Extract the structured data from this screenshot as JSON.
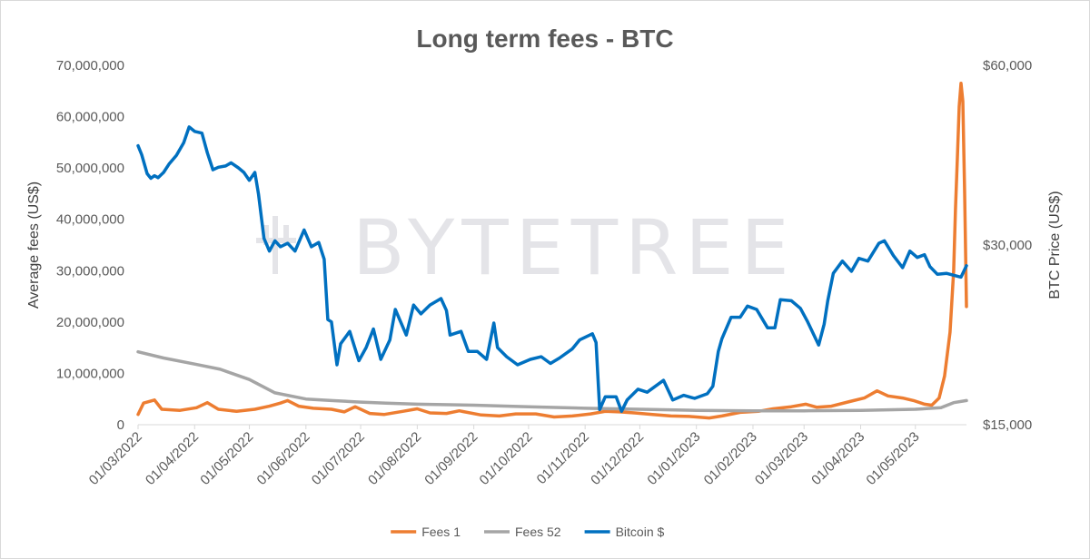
{
  "chart_data": {
    "type": "line",
    "title": "Long term fees - BTC",
    "watermark": "BYTETREE",
    "ylabel": "Average fees (US$)",
    "y2label": "BTC Price (US$)",
    "ylim": [
      0,
      70000000
    ],
    "y2lim": [
      15000,
      60000
    ],
    "yticks": [
      "0",
      "10,000,000",
      "20,000,000",
      "30,000,000",
      "40,000,000",
      "50,000,000",
      "60,000,000",
      "70,000,000"
    ],
    "y2ticks": [
      "$15,000",
      "$30,000",
      "$60,000"
    ],
    "y2tick_values": [
      15000,
      30000,
      60000
    ],
    "xticks": [
      "01/03/2022",
      "01/04/2022",
      "01/05/2022",
      "01/06/2022",
      "01/07/2022",
      "01/08/2022",
      "01/09/2022",
      "01/10/2022",
      "01/11/2022",
      "01/12/2022",
      "01/01/2023",
      "01/02/2023",
      "01/03/2023",
      "01/04/2023",
      "01/05/2023"
    ],
    "xtick_dates": [
      "2022-03-01",
      "2022-04-01",
      "2022-05-01",
      "2022-06-01",
      "2022-07-01",
      "2022-08-01",
      "2022-09-01",
      "2022-10-01",
      "2022-11-01",
      "2022-12-01",
      "2023-01-01",
      "2023-02-01",
      "2023-03-01",
      "2023-04-01",
      "2023-05-01"
    ],
    "x_end": "2023-05-29",
    "legend_position": "bottom",
    "series": [
      {
        "name": "Fees 1",
        "color": "#ED7D31",
        "axis": "left",
        "points": [
          [
            "2022-03-01",
            2000000
          ],
          [
            "2022-03-04",
            4200000
          ],
          [
            "2022-03-10",
            4800000
          ],
          [
            "2022-03-14",
            3000000
          ],
          [
            "2022-03-24",
            2800000
          ],
          [
            "2022-04-02",
            3300000
          ],
          [
            "2022-04-08",
            4300000
          ],
          [
            "2022-04-14",
            3000000
          ],
          [
            "2022-04-24",
            2600000
          ],
          [
            "2022-05-04",
            3000000
          ],
          [
            "2022-05-12",
            3600000
          ],
          [
            "2022-05-18",
            4200000
          ],
          [
            "2022-05-22",
            4700000
          ],
          [
            "2022-05-28",
            3600000
          ],
          [
            "2022-06-05",
            3200000
          ],
          [
            "2022-06-15",
            3000000
          ],
          [
            "2022-06-22",
            2500000
          ],
          [
            "2022-06-28",
            3500000
          ],
          [
            "2022-07-06",
            2200000
          ],
          [
            "2022-07-14",
            2000000
          ],
          [
            "2022-07-24",
            2600000
          ],
          [
            "2022-08-01",
            3100000
          ],
          [
            "2022-08-08",
            2300000
          ],
          [
            "2022-08-17",
            2200000
          ],
          [
            "2022-08-24",
            2700000
          ],
          [
            "2022-09-05",
            1900000
          ],
          [
            "2022-09-15",
            1700000
          ],
          [
            "2022-09-24",
            2100000
          ],
          [
            "2022-10-05",
            2100000
          ],
          [
            "2022-10-15",
            1500000
          ],
          [
            "2022-10-25",
            1700000
          ],
          [
            "2022-11-04",
            2100000
          ],
          [
            "2022-11-12",
            2600000
          ],
          [
            "2022-11-20",
            2500000
          ],
          [
            "2022-11-28",
            2300000
          ],
          [
            "2022-12-08",
            2000000
          ],
          [
            "2022-12-18",
            1700000
          ],
          [
            "2022-12-28",
            1600000
          ],
          [
            "2023-01-08",
            1300000
          ],
          [
            "2023-01-15",
            1700000
          ],
          [
            "2023-01-25",
            2400000
          ],
          [
            "2023-02-04",
            2600000
          ],
          [
            "2023-02-12",
            3100000
          ],
          [
            "2023-02-22",
            3500000
          ],
          [
            "2023-03-02",
            4000000
          ],
          [
            "2023-03-08",
            3400000
          ],
          [
            "2023-03-16",
            3600000
          ],
          [
            "2023-03-26",
            4500000
          ],
          [
            "2023-04-03",
            5200000
          ],
          [
            "2023-04-10",
            6600000
          ],
          [
            "2023-04-16",
            5600000
          ],
          [
            "2023-04-24",
            5200000
          ],
          [
            "2023-04-30",
            4700000
          ],
          [
            "2023-05-06",
            4000000
          ],
          [
            "2023-05-10",
            3800000
          ],
          [
            "2023-05-14",
            5200000
          ],
          [
            "2023-05-17",
            9500000
          ],
          [
            "2023-05-20",
            18000000
          ],
          [
            "2023-05-22",
            30000000
          ],
          [
            "2023-05-23",
            42000000
          ],
          [
            "2023-05-24",
            52000000
          ],
          [
            "2023-05-25",
            62000000
          ],
          [
            "2023-05-26",
            66500000
          ],
          [
            "2023-05-27",
            63000000
          ],
          [
            "2023-05-28",
            45000000
          ],
          [
            "2023-05-29",
            23000000
          ]
        ]
      },
      {
        "name": "Fees 52",
        "color": "#A5A5A5",
        "axis": "left",
        "points": [
          [
            "2022-03-01",
            14200000
          ],
          [
            "2022-03-15",
            13000000
          ],
          [
            "2022-04-01",
            11800000
          ],
          [
            "2022-04-15",
            10800000
          ],
          [
            "2022-05-01",
            8800000
          ],
          [
            "2022-05-15",
            6200000
          ],
          [
            "2022-06-01",
            5000000
          ],
          [
            "2022-06-15",
            4700000
          ],
          [
            "2022-07-01",
            4400000
          ],
          [
            "2022-07-15",
            4200000
          ],
          [
            "2022-08-01",
            4000000
          ],
          [
            "2022-09-01",
            3800000
          ],
          [
            "2022-10-01",
            3500000
          ],
          [
            "2022-11-01",
            3200000
          ],
          [
            "2022-12-01",
            3000000
          ],
          [
            "2023-01-01",
            2800000
          ],
          [
            "2023-02-01",
            2700000
          ],
          [
            "2023-03-01",
            2700000
          ],
          [
            "2023-04-01",
            2800000
          ],
          [
            "2023-05-01",
            3000000
          ],
          [
            "2023-05-15",
            3300000
          ],
          [
            "2023-05-22",
            4300000
          ],
          [
            "2023-05-29",
            4700000
          ]
        ]
      },
      {
        "name": "Bitcoin $",
        "color": "#0070C0",
        "axis": "right",
        "points": [
          [
            "2022-03-01",
            44000
          ],
          [
            "2022-03-03",
            42500
          ],
          [
            "2022-03-06",
            39500
          ],
          [
            "2022-03-08",
            38800
          ],
          [
            "2022-03-10",
            39200
          ],
          [
            "2022-03-12",
            38900
          ],
          [
            "2022-03-15",
            39700
          ],
          [
            "2022-03-18",
            41000
          ],
          [
            "2022-03-22",
            42400
          ],
          [
            "2022-03-26",
            44500
          ],
          [
            "2022-03-29",
            47300
          ],
          [
            "2022-04-01",
            46500
          ],
          [
            "2022-04-05",
            46200
          ],
          [
            "2022-04-08",
            42800
          ],
          [
            "2022-04-11",
            40100
          ],
          [
            "2022-04-14",
            40500
          ],
          [
            "2022-04-18",
            40700
          ],
          [
            "2022-04-21",
            41200
          ],
          [
            "2022-04-25",
            40400
          ],
          [
            "2022-04-28",
            39700
          ],
          [
            "2022-05-01",
            38500
          ],
          [
            "2022-05-04",
            39700
          ],
          [
            "2022-05-06",
            36500
          ],
          [
            "2022-05-09",
            30800
          ],
          [
            "2022-05-12",
            29300
          ],
          [
            "2022-05-15",
            30500
          ],
          [
            "2022-05-18",
            29800
          ],
          [
            "2022-05-22",
            30200
          ],
          [
            "2022-05-26",
            29300
          ],
          [
            "2022-05-31",
            31800
          ],
          [
            "2022-06-04",
            29800
          ],
          [
            "2022-06-08",
            30300
          ],
          [
            "2022-06-11",
            28400
          ],
          [
            "2022-06-13",
            22500
          ],
          [
            "2022-06-15",
            22300
          ],
          [
            "2022-06-18",
            18900
          ],
          [
            "2022-06-20",
            20500
          ],
          [
            "2022-06-25",
            21500
          ],
          [
            "2022-06-30",
            19200
          ],
          [
            "2022-07-04",
            20200
          ],
          [
            "2022-07-08",
            21700
          ],
          [
            "2022-07-12",
            19300
          ],
          [
            "2022-07-17",
            20800
          ],
          [
            "2022-07-20",
            23400
          ],
          [
            "2022-07-26",
            21200
          ],
          [
            "2022-07-30",
            23800
          ],
          [
            "2022-08-03",
            23000
          ],
          [
            "2022-08-08",
            23800
          ],
          [
            "2022-08-14",
            24400
          ],
          [
            "2022-08-17",
            23300
          ],
          [
            "2022-08-19",
            21200
          ],
          [
            "2022-08-25",
            21500
          ],
          [
            "2022-08-29",
            19900
          ],
          [
            "2022-09-03",
            19900
          ],
          [
            "2022-09-08",
            19300
          ],
          [
            "2022-09-12",
            22200
          ],
          [
            "2022-09-14",
            20200
          ],
          [
            "2022-09-19",
            19500
          ],
          [
            "2022-09-25",
            18900
          ],
          [
            "2022-10-02",
            19300
          ],
          [
            "2022-10-08",
            19500
          ],
          [
            "2022-10-13",
            19000
          ],
          [
            "2022-10-18",
            19400
          ],
          [
            "2022-10-25",
            20100
          ],
          [
            "2022-10-29",
            20800
          ],
          [
            "2022-11-05",
            21300
          ],
          [
            "2022-11-07",
            20600
          ],
          [
            "2022-11-09",
            15900
          ],
          [
            "2022-11-12",
            16700
          ],
          [
            "2022-11-18",
            16700
          ],
          [
            "2022-11-21",
            15800
          ],
          [
            "2022-11-24",
            16500
          ],
          [
            "2022-11-30",
            17200
          ],
          [
            "2022-12-05",
            17000
          ],
          [
            "2022-12-14",
            17800
          ],
          [
            "2022-12-19",
            16500
          ],
          [
            "2022-12-25",
            16800
          ],
          [
            "2022-12-31",
            16600
          ],
          [
            "2023-01-07",
            16900
          ],
          [
            "2023-01-10",
            17400
          ],
          [
            "2023-01-13",
            19900
          ],
          [
            "2023-01-15",
            20900
          ],
          [
            "2023-01-20",
            22700
          ],
          [
            "2023-01-25",
            22700
          ],
          [
            "2023-01-29",
            23700
          ],
          [
            "2023-02-03",
            23400
          ],
          [
            "2023-02-09",
            21800
          ],
          [
            "2023-02-13",
            21800
          ],
          [
            "2023-02-16",
            24300
          ],
          [
            "2023-02-22",
            24200
          ],
          [
            "2023-02-27",
            23500
          ],
          [
            "2023-03-03",
            22300
          ],
          [
            "2023-03-09",
            20400
          ],
          [
            "2023-03-12",
            22100
          ],
          [
            "2023-03-14",
            24200
          ],
          [
            "2023-03-17",
            26900
          ],
          [
            "2023-03-22",
            28200
          ],
          [
            "2023-03-27",
            27100
          ],
          [
            "2023-03-31",
            28500
          ],
          [
            "2023-04-05",
            28200
          ],
          [
            "2023-04-11",
            30200
          ],
          [
            "2023-04-14",
            30500
          ],
          [
            "2023-04-19",
            28800
          ],
          [
            "2023-04-24",
            27500
          ],
          [
            "2023-04-28",
            29300
          ],
          [
            "2023-05-02",
            28600
          ],
          [
            "2023-05-06",
            28900
          ],
          [
            "2023-05-09",
            27600
          ],
          [
            "2023-05-13",
            26800
          ],
          [
            "2023-05-18",
            26900
          ],
          [
            "2023-05-22",
            26700
          ],
          [
            "2023-05-26",
            26500
          ],
          [
            "2023-05-29",
            27700
          ]
        ]
      }
    ]
  }
}
